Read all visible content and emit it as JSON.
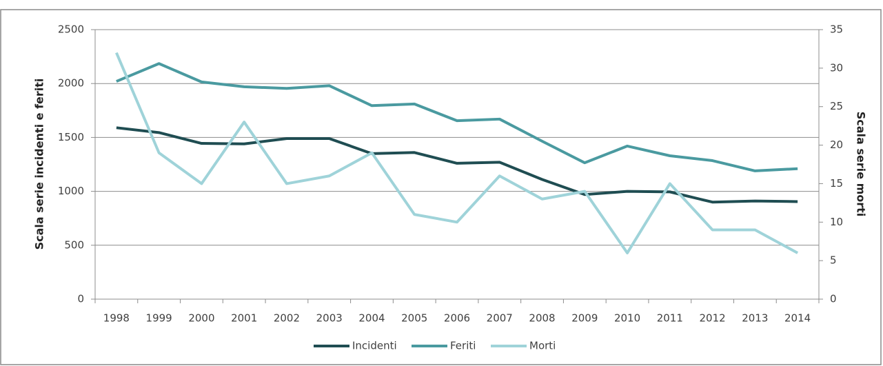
{
  "chart_data": {
    "type": "line",
    "categories": [
      "1998",
      "1999",
      "2000",
      "2001",
      "2002",
      "2003",
      "2004",
      "2005",
      "2006",
      "2007",
      "2008",
      "2009",
      "2010",
      "2011",
      "2012",
      "2013",
      "2014"
    ],
    "ylabel": "Scala serie incidenti e feriti",
    "y2label": "Scala serie morti",
    "ylim": [
      0,
      2500
    ],
    "yticks": [
      0,
      500,
      1000,
      1500,
      2000,
      2500
    ],
    "y2lim": [
      0,
      35
    ],
    "y2ticks": [
      0,
      5,
      10,
      15,
      20,
      25,
      30,
      35
    ],
    "grid": true,
    "legend": "bottom",
    "series": [
      {
        "name": "Incidenti",
        "color": "#1f4d52",
        "values": [
          1590,
          1545,
          1445,
          1440,
          1490,
          1490,
          1350,
          1360,
          1260,
          1270,
          1110,
          970,
          1000,
          995,
          900,
          910,
          905
        ]
      },
      {
        "name": "Feriti",
        "color": "#4a9aa0",
        "values": [
          2020,
          2185,
          2015,
          1970,
          1955,
          1980,
          1795,
          1810,
          1655,
          1670,
          1465,
          1265,
          1420,
          1330,
          1285,
          1190,
          1210
        ]
      },
      {
        "name": "Morti",
        "color": "#9fd3d9",
        "axis": "y2",
        "values": [
          32,
          19,
          15,
          23,
          15,
          16,
          19,
          11,
          10,
          16,
          13,
          14,
          6,
          15,
          9,
          9,
          6
        ]
      }
    ]
  }
}
